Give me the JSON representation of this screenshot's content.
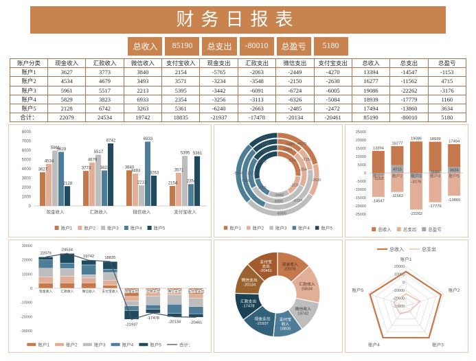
{
  "title": "财务日报表",
  "summary": {
    "cells": [
      "总收入",
      "85190",
      "总支出",
      "-80010",
      "总盈亏",
      "5180"
    ]
  },
  "table": {
    "headers": [
      "账户分类",
      "现金收入",
      "汇款收入",
      "微信收入",
      "支付宝收入",
      "现金支出",
      "汇款支出",
      "微信支出",
      "支付宝支出",
      "总收入",
      "总支出",
      "总盈亏"
    ],
    "rows": [
      [
        "账户1",
        "3627",
        "3773",
        "3840",
        "2154",
        "-5765",
        "-2063",
        "-2449",
        "-4270",
        "13394",
        "-14547",
        "-1153"
      ],
      [
        "账户2",
        "4534",
        "4679",
        "3493",
        "3571",
        "-3234",
        "-3548",
        "-2150",
        "-2630",
        "16277",
        "-11562",
        "4715"
      ],
      [
        "账户3",
        "5961",
        "5517",
        "2213",
        "5395",
        "-3442",
        "-6091",
        "-6724",
        "-6005",
        "19086",
        "-22262",
        "-3176"
      ],
      [
        "账户4",
        "5829",
        "3823",
        "6933",
        "2354",
        "-3256",
        "-3113",
        "-6326",
        "-5084",
        "18939",
        "-17779",
        "1160"
      ],
      [
        "账户5",
        "2128",
        "6742",
        "3263",
        "5361",
        "-6240",
        "-2663",
        "-2485",
        "-2472",
        "17494",
        "-13860",
        "3634"
      ],
      [
        "合计：",
        "22079",
        "24534",
        "19742",
        "18835",
        "-21937",
        "-17478",
        "-20134",
        "-20461",
        "85190",
        "-80010",
        "5180"
      ]
    ]
  },
  "colors": {
    "copper": "#C8834F",
    "panel_border": "#E8C7AE",
    "table_border": "#A5734F",
    "acc1": "#C5784C",
    "acc2": "#E3AE97",
    "acc3": "#BDBDBD",
    "acc4": "#4E7D97",
    "acc5": "#1F4A5E",
    "profit_gray": "#A6A6A6",
    "line_slate": "#44546A",
    "cash_out": "#31627A",
    "remit_out": "#1B4254",
    "wechat_out": "#99622F",
    "alipay_out": "#A35B2E",
    "income_line": "#C87848",
    "expense_line": "#EBB9A2"
  },
  "chart_data": [
    {
      "type": "bar",
      "categories": [
        "现金收入",
        "汇款收入",
        "微信收入",
        "支付宝收入"
      ],
      "series": [
        {
          "name": "账户1",
          "color": "acc1",
          "values": [
            3627,
            3773,
            3840,
            2154
          ]
        },
        {
          "name": "账户2",
          "color": "acc2",
          "values": [
            4534,
            4679,
            3493,
            3571
          ]
        },
        {
          "name": "账户3",
          "color": "acc3",
          "values": [
            5961,
            5517,
            2213,
            5395
          ]
        },
        {
          "name": "账户4",
          "color": "acc4",
          "values": [
            5829,
            3823,
            6933,
            2354
          ]
        },
        {
          "name": "账户5",
          "color": "acc5",
          "values": [
            2128,
            6742,
            3263,
            5361
          ]
        }
      ],
      "ylim": [
        0,
        8000
      ],
      "ytick": 1000
    },
    {
      "type": "doughnut-rings",
      "accounts": [
        "账户1",
        "账户2",
        "账户3",
        "账户4",
        "账户5"
      ],
      "account_colors": [
        "acc1",
        "acc2",
        "acc3",
        "acc4",
        "acc5"
      ],
      "rings": [
        {
          "name": "现金支出",
          "values": [
            -5765,
            -3234,
            -3442,
            -3256,
            -6240
          ]
        },
        {
          "name": "汇款支出",
          "values": [
            -2063,
            -3548,
            -6091,
            -3113,
            -2663
          ]
        },
        {
          "name": "微信支出",
          "values": [
            -2449,
            -2150,
            -6724,
            -6326,
            -2485
          ]
        },
        {
          "name": "支付宝支出",
          "values": [
            -4270,
            -2630,
            -6005,
            -5084,
            -2472
          ]
        }
      ]
    },
    {
      "type": "bar-posneg",
      "categories": [
        "账户1",
        "账户2",
        "账户3",
        "账户4",
        "账户5"
      ],
      "series": [
        {
          "name": "总收入",
          "color": "acc1",
          "values": [
            13394,
            16277,
            19086,
            18939,
            17494
          ]
        },
        {
          "name": "总支出",
          "color": "acc2",
          "values": [
            -14547,
            -11562,
            -22262,
            -17779,
            -13860
          ]
        },
        {
          "name": "总盈亏",
          "color": "profit_gray",
          "values": [
            -1153,
            4715,
            -3176,
            1160,
            3634
          ]
        }
      ],
      "ylim": [
        -25000,
        25000
      ],
      "ytick": 5000
    },
    {
      "type": "stacked-bar-line",
      "categories": [
        "现金收入",
        "汇款收入",
        "微信收入",
        "支付宝收入",
        "现金支出",
        "汇款支出",
        "微信支出",
        "支付宝支出"
      ],
      "series": [
        {
          "name": "账户1",
          "color": "acc1",
          "values": [
            3627,
            3773,
            3840,
            2154,
            -5765,
            -2063,
            -2449,
            -4270
          ]
        },
        {
          "name": "账户2",
          "color": "acc2",
          "values": [
            4534,
            4679,
            3493,
            3571,
            -3234,
            -3548,
            -2150,
            -2630
          ]
        },
        {
          "name": "账户3",
          "color": "acc3",
          "values": [
            5961,
            5517,
            2213,
            5395,
            -3442,
            -6091,
            -6724,
            -6005
          ]
        },
        {
          "name": "账户4",
          "color": "acc4",
          "values": [
            5829,
            3823,
            6933,
            2354,
            -3256,
            -3113,
            -6326,
            -5084
          ]
        },
        {
          "name": "账户5",
          "color": "acc5",
          "values": [
            2128,
            6742,
            3263,
            5361,
            -6240,
            -2663,
            -2485,
            -2472
          ]
        }
      ],
      "line": {
        "name": "合计：",
        "color": "line_slate",
        "values": [
          22079,
          24534,
          19742,
          18835,
          -21937,
          -17478,
          -20134,
          -20461
        ]
      },
      "ylim": [
        -30000,
        30000
      ],
      "ytick": 10000
    },
    {
      "type": "doughnut",
      "segments": [
        {
          "name": "现金收入",
          "value": 22079,
          "color": "acc1",
          "text": "#3B2B1E"
        },
        {
          "name": "汇款收入",
          "value": 24534,
          "color": "acc2",
          "text": "#4A3526"
        },
        {
          "name": "微信收入",
          "value": 19742,
          "color": "acc3",
          "text": "#3A3A3A"
        },
        {
          "name": "支付宝收入",
          "value": 18835,
          "color": "acc4",
          "text": "#FFFFFF"
        },
        {
          "name": "现金支出",
          "value": -21937,
          "color": "cash_out",
          "text": "#FFFFFF"
        },
        {
          "name": "汇款支出",
          "value": -17478,
          "color": "remit_out",
          "text": "#FFFFFF"
        },
        {
          "name": "微信支出",
          "value": -20134,
          "color": "wechat_out",
          "text": "#FFFFFF"
        },
        {
          "name": "支付宝支出",
          "value": -20461,
          "color": "alipay_out",
          "text": "#FFFFFF"
        }
      ]
    },
    {
      "type": "radar",
      "categories": [
        "账户1",
        "账户2",
        "账户3",
        "账户4",
        "账户5"
      ],
      "series": [
        {
          "name": "总收入",
          "color": "income_line",
          "width": 2.2,
          "values": [
            13394,
            16277,
            19086,
            18939,
            17494
          ]
        },
        {
          "name": "总支出",
          "color": "expense_line",
          "width": 1.4,
          "values": [
            -14547,
            -11562,
            -22262,
            -17779,
            -13860
          ]
        }
      ],
      "rlim": [
        -30000,
        20000
      ],
      "ticks": [
        20000,
        10000,
        0,
        -10000,
        -20000,
        -30000
      ]
    }
  ]
}
